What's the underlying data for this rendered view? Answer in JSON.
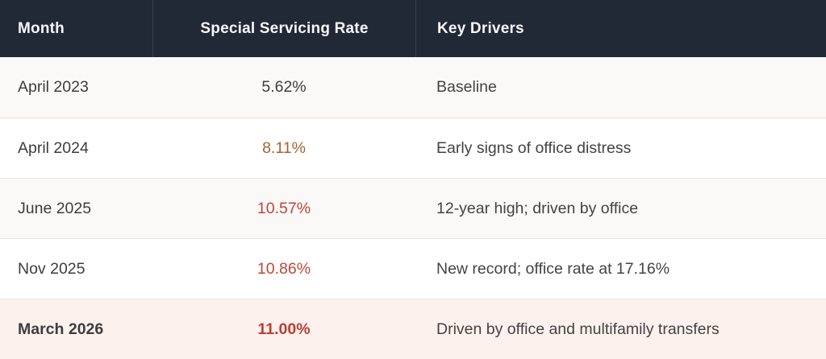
{
  "chart_data": {
    "type": "table",
    "columns": [
      "Month",
      "Special Servicing Rate",
      "Key Drivers"
    ],
    "rows": [
      [
        "April 2023",
        "5.62%",
        "Baseline"
      ],
      [
        "April 2024",
        "8.11%",
        "Early signs of office distress"
      ],
      [
        "June 2025",
        "10.57%",
        "12-year high; driven by office"
      ],
      [
        "Nov 2025",
        "10.86%",
        "New record; office rate at 17.16%"
      ],
      [
        "March 2026",
        "11.00%",
        "Driven by office and multifamily transfers"
      ]
    ],
    "rates_numeric_percent": [
      5.62,
      8.11,
      10.57,
      10.86,
      11.0
    ]
  },
  "table": {
    "header": {
      "month": "Month",
      "rate": "Special Servicing Rate",
      "drivers": "Key Drivers"
    },
    "rows": [
      {
        "month": "April 2023",
        "rate": "5.62%",
        "driver": "Baseline",
        "rate_color": "#3d3d3d",
        "bg": "#faf9f7",
        "bold": false
      },
      {
        "month": "April 2024",
        "rate": "8.11%",
        "driver": "Early signs of office distress",
        "rate_color": "#a5632d",
        "bg": "#ffffff",
        "bold": false
      },
      {
        "month": "June 2025",
        "rate": "10.57%",
        "driver": "12-year high; driven by office",
        "rate_color": "#c04638",
        "bg": "#faf9f7",
        "bold": false
      },
      {
        "month": "Nov 2025",
        "rate": "10.86%",
        "driver": "New record; office rate at 17.16%",
        "rate_color": "#c04638",
        "bg": "#ffffff",
        "bold": false
      },
      {
        "month": "March 2026",
        "rate": "11.00%",
        "driver": "Driven by office and multifamily transfers",
        "rate_color": "#bc3e33",
        "bg": "#fdf1ee",
        "bold": true
      }
    ],
    "colors": {
      "header_bg": "#212836",
      "header_text": "#f7f8fa",
      "header_divider": "#39424f",
      "row_divider": "#e9e5e0",
      "body_text": "#3d3d3d",
      "highlight_row_bg": "#fdf1ee"
    }
  }
}
